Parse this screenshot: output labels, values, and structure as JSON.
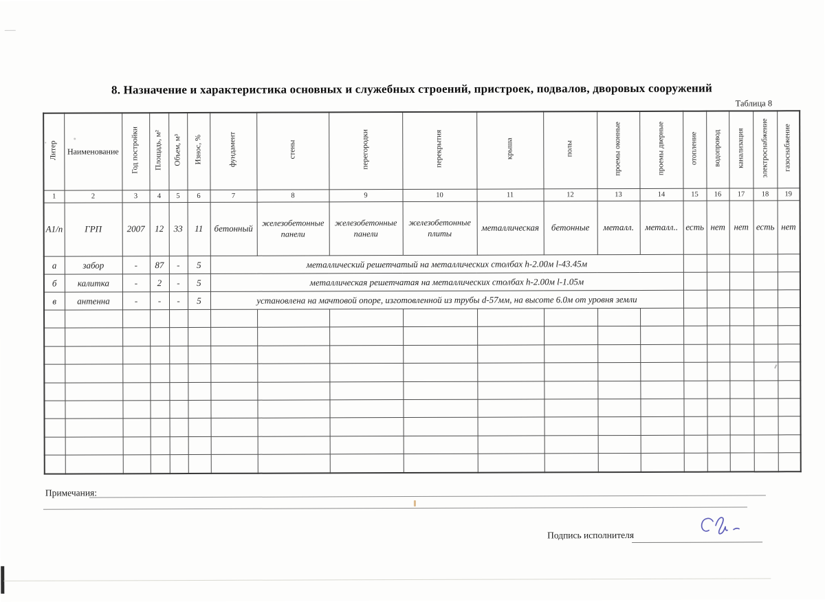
{
  "page": {
    "title": "8. Назначение и характеристика основных и служебных строений, пристроек, подвалов, дворовых сооружений",
    "table_label": "Таблица 8",
    "notes_label": "Примечания:",
    "signature_label": "Подпись исполнителя"
  },
  "colors": {
    "ink": "#1c1c1c",
    "table_line": "#4a4a4a",
    "signature_ink": "#5e5eb8"
  },
  "table": {
    "columns": [
      {
        "num": "1",
        "label": "Литер"
      },
      {
        "num": "2",
        "label": "Наименование"
      },
      {
        "num": "3",
        "label": "Год постройки"
      },
      {
        "num": "4",
        "label": "Площадь, м²"
      },
      {
        "num": "5",
        "label": "Объем, м³"
      },
      {
        "num": "6",
        "label": "Износ, %"
      },
      {
        "num": "7",
        "label": "фундамент"
      },
      {
        "num": "8",
        "label": "стены"
      },
      {
        "num": "9",
        "label": "перегородки"
      },
      {
        "num": "10",
        "label": "перекрытия"
      },
      {
        "num": "11",
        "label": "крыша"
      },
      {
        "num": "12",
        "label": "полы"
      },
      {
        "num": "13",
        "label": "проемы оконные"
      },
      {
        "num": "14",
        "label": "проемы дверные"
      },
      {
        "num": "15",
        "label": "отопление"
      },
      {
        "num": "16",
        "label": "водопровод"
      },
      {
        "num": "17",
        "label": "канализация"
      },
      {
        "num": "18",
        "label": "электроснабжение"
      },
      {
        "num": "19",
        "label": "газоснабжение"
      }
    ],
    "main_row": {
      "cells": [
        "А1/п",
        "ГРП",
        "2007",
        "12",
        "33",
        "11",
        "бетонный",
        "железобетонные панели",
        "железобетонные панели",
        "железобетонные плиты",
        "металлическая",
        "бетонные",
        "металл.",
        "металл..",
        "есть",
        "нет",
        "нет",
        "есть",
        "нет"
      ]
    },
    "span_rows": [
      {
        "liter": "а",
        "name": "забор",
        "year": "-",
        "area": "87",
        "volume": "-",
        "wear": "5",
        "description": "металлический решетчатый на металлических столбах h-2.00м l-43.45м"
      },
      {
        "liter": "б",
        "name": "калитка",
        "year": "-",
        "area": "2",
        "volume": "-",
        "wear": "5",
        "description": "металлическая решетчатая на металлических столбах h-2.00м l-1.05м"
      },
      {
        "liter": "в",
        "name": "антенна",
        "year": "-",
        "area": "-",
        "volume": "-",
        "wear": "5",
        "description": "установлена на мачтовой опоре, изготовленной из трубы d-57мм, на высоте 6.0м от уровня земли"
      }
    ],
    "empty_row_count": 9
  }
}
